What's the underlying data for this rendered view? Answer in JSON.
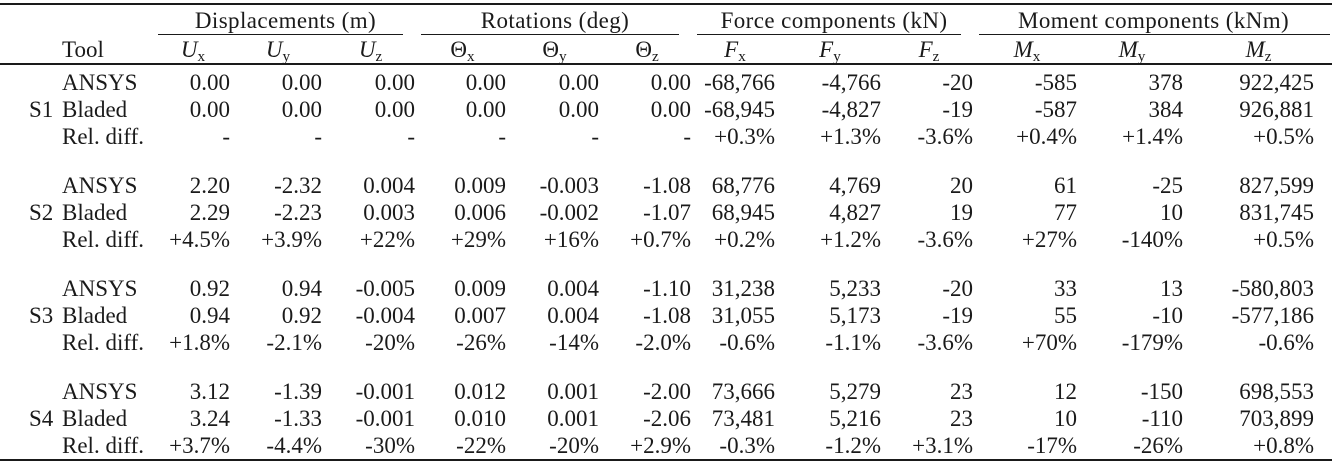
{
  "page": {
    "background": "#ffffff",
    "text_color": "#1a1a1a",
    "rule_color": "#1a1a1a"
  },
  "table": {
    "tool_header": "Tool",
    "groups": [
      {
        "label": "Displacements (m)",
        "columns": [
          {
            "base": "U",
            "sub": "x",
            "italic": true
          },
          {
            "base": "U",
            "sub": "y",
            "italic": true
          },
          {
            "base": "U",
            "sub": "z",
            "italic": true
          }
        ]
      },
      {
        "label": "Rotations (deg)",
        "columns": [
          {
            "base": "Θ",
            "sub": "x",
            "italic": false
          },
          {
            "base": "Θ",
            "sub": "y",
            "italic": false
          },
          {
            "base": "Θ",
            "sub": "z",
            "italic": false
          }
        ]
      },
      {
        "label": "Force components (kN)",
        "columns": [
          {
            "base": "F",
            "sub": "x",
            "italic": true
          },
          {
            "base": "F",
            "sub": "y",
            "italic": true
          },
          {
            "base": "F",
            "sub": "z",
            "italic": true
          }
        ]
      },
      {
        "label": "Moment components (kNm)",
        "columns": [
          {
            "base": "M",
            "sub": "x",
            "italic": true
          },
          {
            "base": "M",
            "sub": "y",
            "italic": true
          },
          {
            "base": "M",
            "sub": "z",
            "italic": true
          }
        ]
      }
    ],
    "blocks": [
      {
        "id": "S1",
        "rows": [
          {
            "tool": "ANSYS",
            "values": [
              "0.00",
              "0.00",
              "0.00",
              "0.00",
              "0.00",
              "0.00",
              "-68,766",
              "-4,766",
              "-20",
              "-585",
              "378",
              "922,425"
            ]
          },
          {
            "tool": "Bladed",
            "values": [
              "0.00",
              "0.00",
              "0.00",
              "0.00",
              "0.00",
              "0.00",
              "-68,945",
              "-4,827",
              "-19",
              "-587",
              "384",
              "926,881"
            ]
          },
          {
            "tool": "Rel. diff.",
            "values": [
              "-",
              "-",
              "-",
              "-",
              "-",
              "-",
              "+0.3%",
              "+1.3%",
              "-3.6%",
              "+0.4%",
              "+1.4%",
              "+0.5%"
            ]
          }
        ]
      },
      {
        "id": "S2",
        "rows": [
          {
            "tool": "ANSYS",
            "values": [
              "2.20",
              "-2.32",
              "0.004",
              "0.009",
              "-0.003",
              "-1.08",
              "68,776",
              "4,769",
              "20",
              "61",
              "-25",
              "827,599"
            ]
          },
          {
            "tool": "Bladed",
            "values": [
              "2.29",
              "-2.23",
              "0.003",
              "0.006",
              "-0.002",
              "-1.07",
              "68,945",
              "4,827",
              "19",
              "77",
              "10",
              "831,745"
            ]
          },
          {
            "tool": "Rel. diff.",
            "values": [
              "+4.5%",
              "+3.9%",
              "+22%",
              "+29%",
              "+16%",
              "+0.7%",
              "+0.2%",
              "+1.2%",
              "-3.6%",
              "+27%",
              "-140%",
              "+0.5%"
            ]
          }
        ]
      },
      {
        "id": "S3",
        "rows": [
          {
            "tool": "ANSYS",
            "values": [
              "0.92",
              "0.94",
              "-0.005",
              "0.009",
              "0.004",
              "-1.10",
              "31,238",
              "5,233",
              "-20",
              "33",
              "13",
              "-580,803"
            ]
          },
          {
            "tool": "Bladed",
            "values": [
              "0.94",
              "0.92",
              "-0.004",
              "0.007",
              "0.004",
              "-1.08",
              "31,055",
              "5,173",
              "-19",
              "55",
              "-10",
              "-577,186"
            ]
          },
          {
            "tool": "Rel. diff.",
            "values": [
              "+1.8%",
              "-2.1%",
              "-20%",
              "-26%",
              "-14%",
              "-2.0%",
              "-0.6%",
              "-1.1%",
              "-3.6%",
              "+70%",
              "-179%",
              "-0.6%"
            ]
          }
        ]
      },
      {
        "id": "S4",
        "rows": [
          {
            "tool": "ANSYS",
            "values": [
              "3.12",
              "-1.39",
              "-0.001",
              "0.012",
              "0.001",
              "-2.00",
              "73,666",
              "5,279",
              "23",
              "12",
              "-150",
              "698,553"
            ]
          },
          {
            "tool": "Bladed",
            "values": [
              "3.24",
              "-1.33",
              "-0.001",
              "0.010",
              "0.001",
              "-2.06",
              "73,481",
              "5,216",
              "23",
              "10",
              "-110",
              "703,899"
            ]
          },
          {
            "tool": "Rel. diff.",
            "values": [
              "+3.7%",
              "-4.4%",
              "-30%",
              "-22%",
              "-20%",
              "+2.9%",
              "-0.3%",
              "-1.2%",
              "+3.1%",
              "-17%",
              "-26%",
              "+0.8%"
            ]
          }
        ]
      }
    ]
  }
}
